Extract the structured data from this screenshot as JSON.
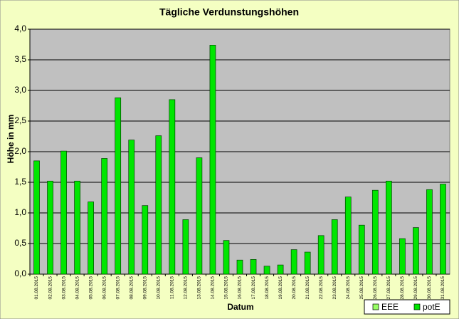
{
  "chart_data": {
    "type": "bar",
    "title": "Tägliche Verdunstungshöhen",
    "y_label": "Höhe in mm",
    "x_label": "Datum",
    "categories": [
      "01.08.2015",
      "02.08.2015",
      "03.08.2015",
      "04.08.2015",
      "05.08.2015",
      "06.08.2015",
      "07.08.2015",
      "08.08.2015",
      "09.08.2015",
      "10.08.2015",
      "11.08.2015",
      "12.08.2015",
      "13.08.2015",
      "14.08.2015",
      "15.08.2015",
      "16.08.2015",
      "17.08.2015",
      "18.08.2015",
      "19.08.2015",
      "20.08.2015",
      "21.08.2015",
      "22.08.2015",
      "23.08.2015",
      "24.08.2015",
      "25.08.2015",
      "26.08.2015",
      "27.08.2015",
      "28.08.2015",
      "29.08.2015",
      "30.08.2015",
      "31.08.2015"
    ],
    "series": [
      {
        "name": "EEE",
        "color": "#99ff66",
        "values": [
          null,
          null,
          null,
          null,
          null,
          null,
          null,
          null,
          null,
          null,
          null,
          null,
          null,
          null,
          null,
          null,
          null,
          null,
          null,
          null,
          null,
          null,
          null,
          null,
          null,
          null,
          null,
          null,
          null,
          null,
          null
        ]
      },
      {
        "name": "potE",
        "color": "#00e600",
        "values": [
          1.85,
          1.52,
          2.01,
          1.52,
          1.18,
          1.89,
          2.88,
          2.19,
          1.12,
          2.26,
          2.85,
          0.89,
          1.9,
          3.74,
          0.55,
          0.23,
          0.24,
          0.13,
          0.15,
          0.4,
          0.36,
          0.63,
          0.89,
          1.26,
          0.8,
          1.37,
          1.52,
          0.58,
          0.76,
          1.38,
          1.47
        ]
      }
    ],
    "ylim": [
      0,
      4
    ],
    "yticks": [
      {
        "value": 0,
        "label": "0,0"
      },
      {
        "value": 0.5,
        "label": "0,5"
      },
      {
        "value": 1,
        "label": "1,0"
      },
      {
        "value": 1.5,
        "label": "1,5"
      },
      {
        "value": 2,
        "label": "2,0"
      },
      {
        "value": 2.5,
        "label": "2,5"
      },
      {
        "value": 3,
        "label": "3,0"
      },
      {
        "value": 3.5,
        "label": "3,5"
      },
      {
        "value": 4,
        "label": "4,0"
      }
    ],
    "grid": true,
    "legend": "bottom-right"
  }
}
